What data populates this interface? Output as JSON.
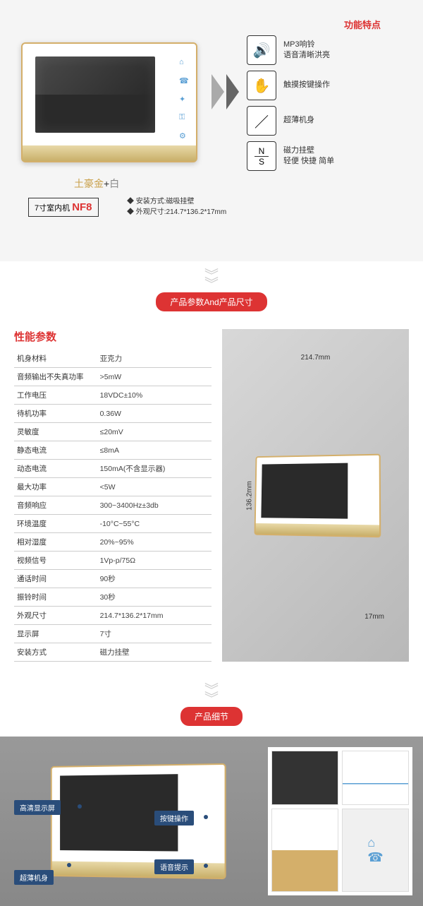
{
  "section1": {
    "color_gold": "土豪金",
    "color_plus": "+",
    "color_white": "白",
    "model_prefix": "7寸室内机",
    "model": "NF8",
    "install1": "◆ 安装方式:磁吸挂壁",
    "install2": "◆ 外观尺寸:214.7*136.2*17mm",
    "feat_title": "功能特点",
    "features": [
      {
        "icon": "🔊",
        "t1": "MP3响铃",
        "t2": "语音清晰洪亮"
      },
      {
        "icon": "✋",
        "t1": "触摸按键操作",
        "t2": ""
      },
      {
        "icon": "／",
        "t1": "超薄机身",
        "t2": ""
      },
      {
        "icon": "N/S",
        "t1": "磁力挂壁",
        "t2": "轻便 快捷 简单"
      }
    ]
  },
  "banner1": "产品参数And产品尺寸",
  "specs": {
    "title": "性能参数",
    "rows": [
      [
        "机身材料",
        "亚克力"
      ],
      [
        "音频输出不失真功率",
        ">5mW"
      ],
      [
        "工作电压",
        "18VDC±10%"
      ],
      [
        "待机功率",
        "0.36W"
      ],
      [
        "灵敏度",
        "≤20mV"
      ],
      [
        "静态电流",
        "≤8mA"
      ],
      [
        "动态电流",
        "150mA(不含显示器)"
      ],
      [
        "最大功率",
        "<5W"
      ],
      [
        "音频响应",
        "300~3400Hz±3db"
      ],
      [
        "环境温度",
        "-10°C~55°C"
      ],
      [
        "相对湿度",
        "20%~95%"
      ],
      [
        "视频信号",
        "1Vp-p/75Ω"
      ],
      [
        "通话时间",
        "90秒"
      ],
      [
        "振铃时间",
        "30秒"
      ],
      [
        "外观尺寸",
        "214.7*136.2*17mm"
      ],
      [
        "显示屏",
        "7寸"
      ],
      [
        "安装方式",
        "磁力挂壁"
      ]
    ]
  },
  "dims": {
    "w": "214.7mm",
    "h": "136.2mm",
    "d": "17mm"
  },
  "banner2": "产品细节",
  "callouts": {
    "c1": "高清显示屏",
    "c2": "超薄机身",
    "c3": "按键操作",
    "c4": "语音提示"
  }
}
